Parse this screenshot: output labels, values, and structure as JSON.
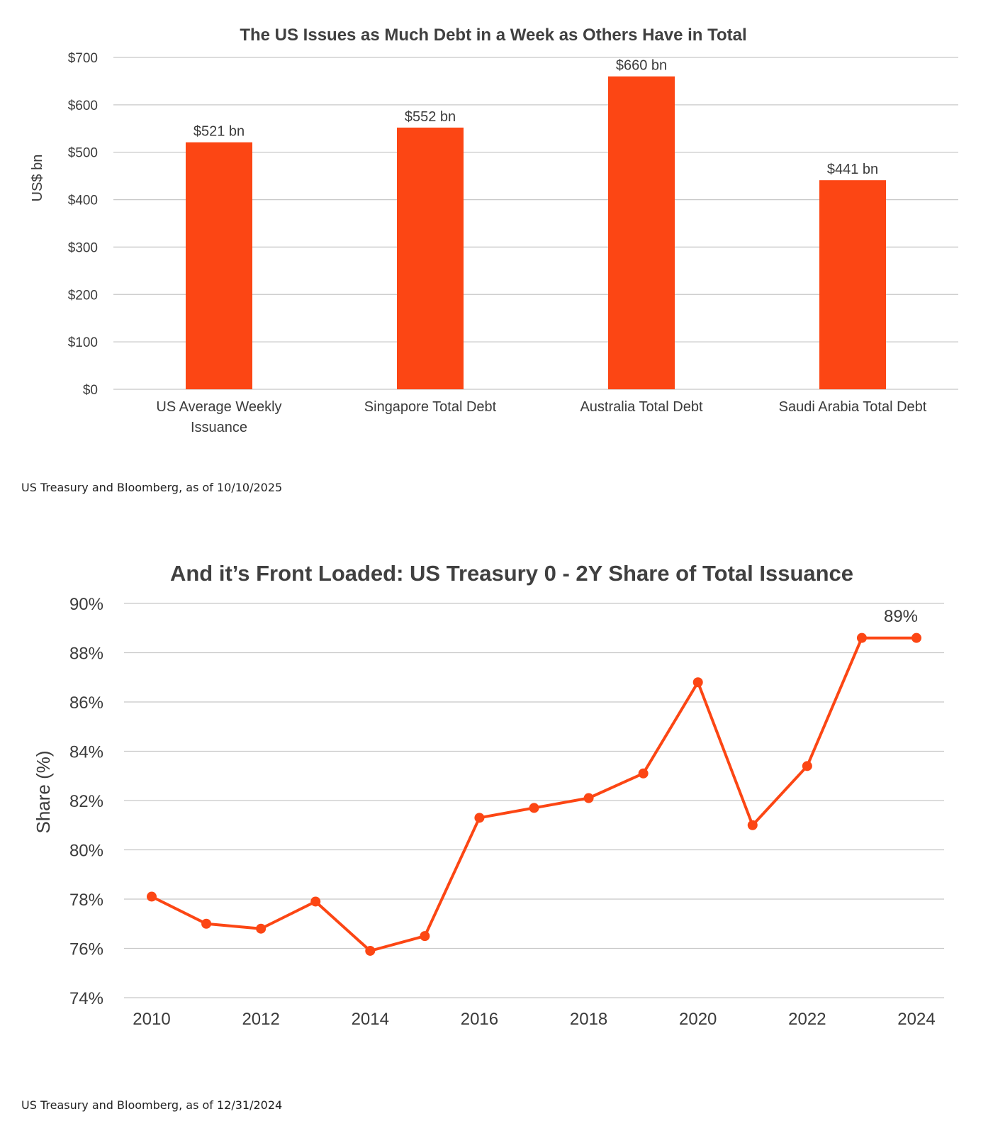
{
  "chart_data": [
    {
      "type": "bar",
      "title": "The US Issues as Much Debt in a Week as Others Have in Total",
      "ylabel": "US$ bn",
      "xlabel": "",
      "ylim": [
        0,
        700
      ],
      "y_ticks": [
        "$0",
        "$100",
        "$200",
        "$300",
        "$400",
        "$500",
        "$600",
        "$700"
      ],
      "y_tick_values": [
        0,
        100,
        200,
        300,
        400,
        500,
        600,
        700
      ],
      "categories": [
        [
          "US Average Weekly",
          "Issuance"
        ],
        [
          "Singapore Total Debt"
        ],
        [
          "Australia Total Debt"
        ],
        [
          "Saudi Arabia Total Debt"
        ]
      ],
      "values": [
        521,
        552,
        660,
        441
      ],
      "data_labels": [
        "$521 bn",
        "$552 bn",
        "$660 bn",
        "$441 bn"
      ],
      "color": "#fc4614",
      "grid": true,
      "legend": "none"
    },
    {
      "type": "line",
      "title": "And it’s Front Loaded: US Treasury 0 - 2Y Share of Total Issuance",
      "ylabel": "Share (%)",
      "xlabel": "",
      "ylim": [
        74,
        90
      ],
      "y_ticks": [
        "74%",
        "76%",
        "78%",
        "80%",
        "82%",
        "84%",
        "86%",
        "88%",
        "90%"
      ],
      "y_tick_values": [
        74,
        76,
        78,
        80,
        82,
        84,
        86,
        88,
        90
      ],
      "x": [
        2010,
        2011,
        2012,
        2013,
        2014,
        2015,
        2016,
        2017,
        2018,
        2019,
        2020,
        2021,
        2022,
        2023,
        2024
      ],
      "x_ticks": [
        "2010",
        "2012",
        "2014",
        "2016",
        "2018",
        "2020",
        "2022",
        "2024"
      ],
      "x_tick_values": [
        2010,
        2012,
        2014,
        2016,
        2018,
        2020,
        2022,
        2024
      ],
      "values": [
        78.1,
        77.0,
        76.8,
        77.9,
        75.9,
        76.5,
        81.3,
        81.7,
        82.1,
        83.1,
        86.8,
        81.0,
        83.4,
        88.6,
        88.6
      ],
      "annotation": {
        "text": "89%",
        "x": 2024
      },
      "color": "#fc4614",
      "grid": true,
      "legend": "none"
    }
  ],
  "sources": [
    "US Treasury and Bloomberg, as of 10/10/2025",
    "US Treasury and Bloomberg, as of 12/31/2024"
  ]
}
